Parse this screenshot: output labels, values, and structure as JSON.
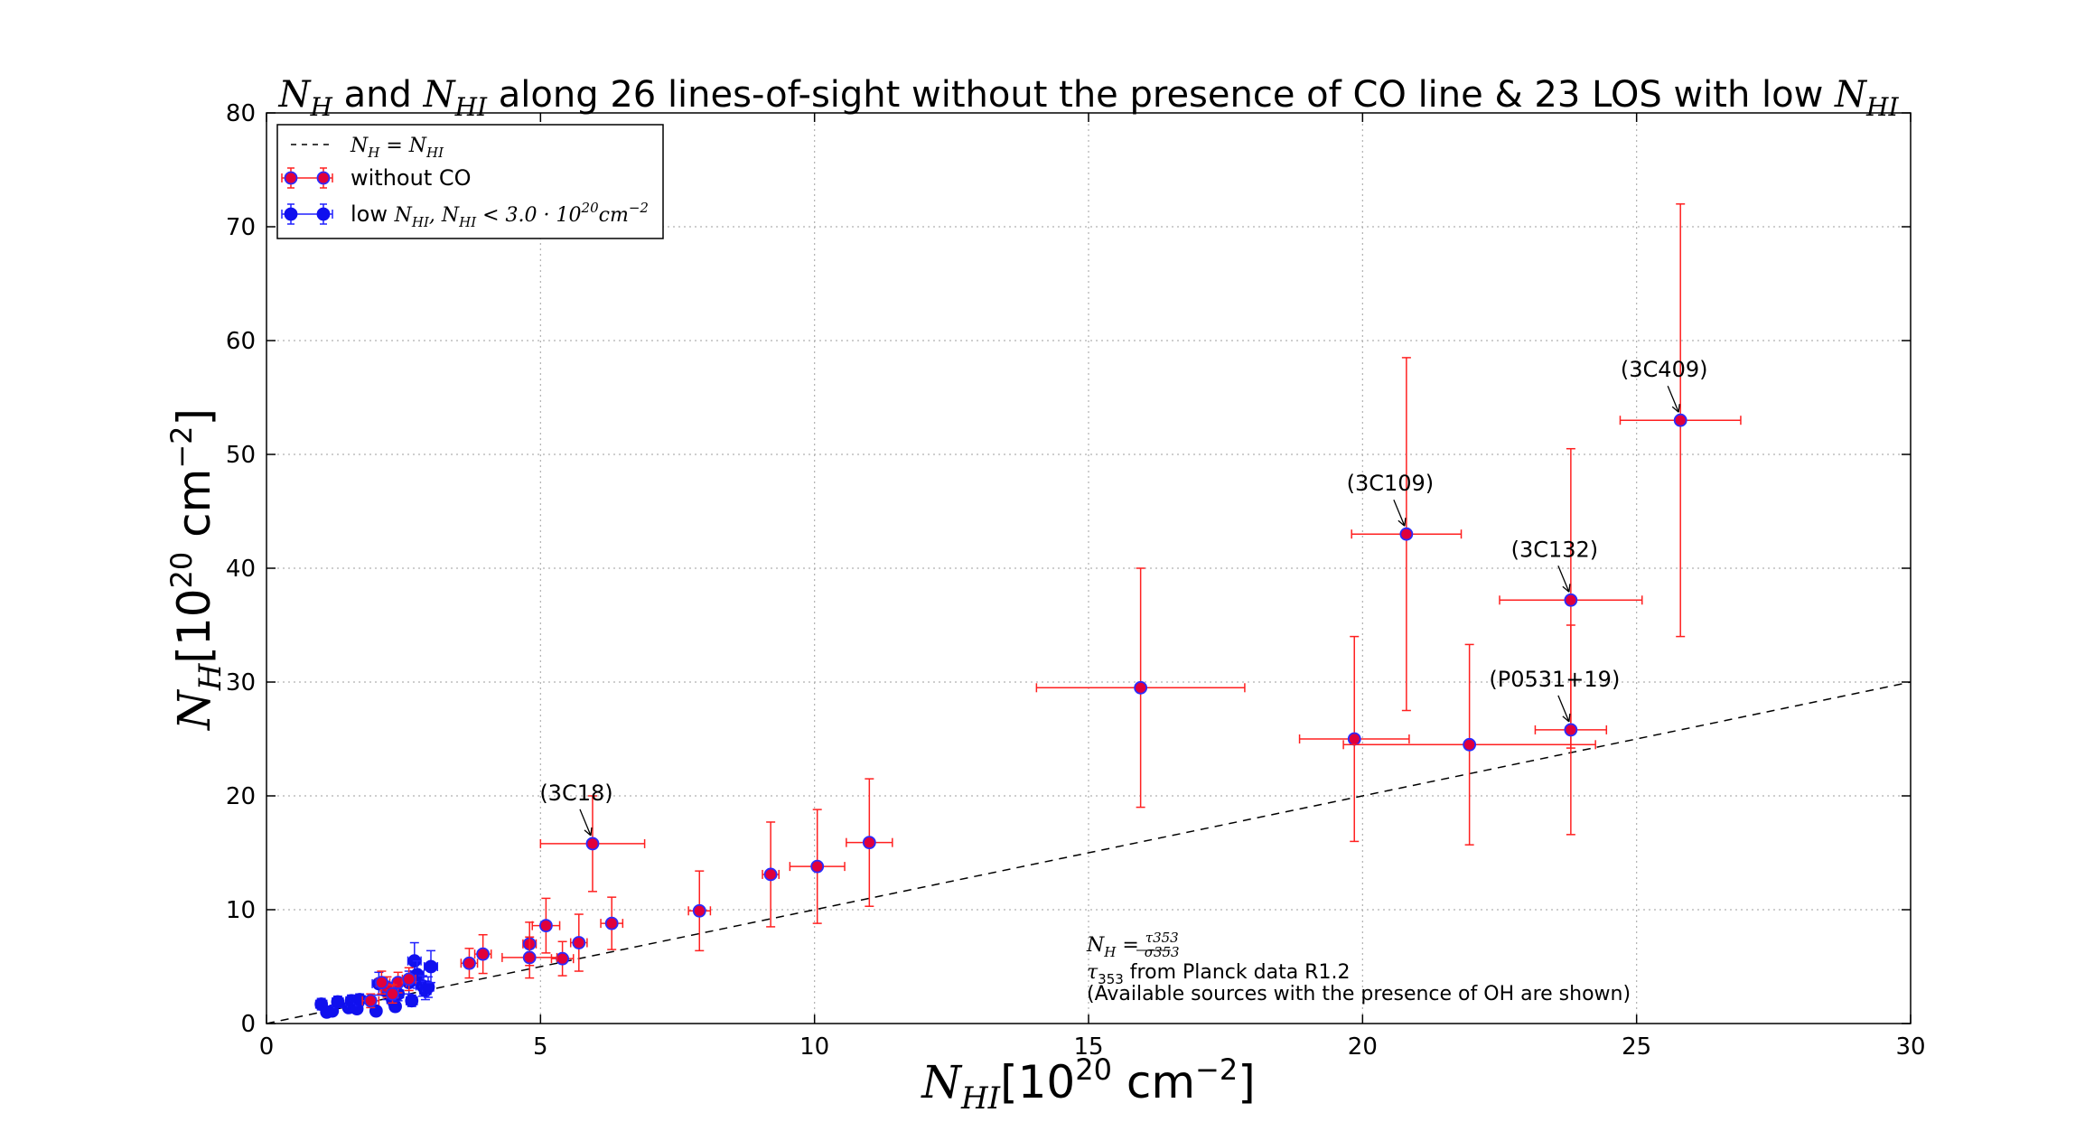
{
  "chart_data": {
    "type": "scatter",
    "title": "N_H and N_HI along 26 lines-of-sight without the presence of CO line & 23 LOS with low N_HI",
    "xlabel": "N_HI [10^20 cm^-2]",
    "ylabel": "N_H [10^20 cm^-2]",
    "xlim": [
      0,
      30
    ],
    "ylim": [
      0,
      80
    ],
    "x_ticks": [
      0,
      5,
      10,
      15,
      20,
      25,
      30
    ],
    "y_ticks": [
      0,
      10,
      20,
      30,
      40,
      50,
      60,
      70,
      80
    ],
    "grid": true,
    "legend_position": "top-left",
    "legend": {
      "line": "N_H = N_HI",
      "without_co": "without CO",
      "low_nhi": "low N_HI, N_HI < 3.0·10^20 cm^-2"
    },
    "reference_line": {
      "name": "N_H = N_HI",
      "style": "dashed",
      "color": "#000000",
      "x": [
        0,
        30
      ],
      "y": [
        0,
        30
      ]
    },
    "annotation_text": [
      "N_H = τ353 / σ353",
      "τ353 from Planck data R1.2",
      "(Available sources with the presence of OH are shown)"
    ],
    "series": [
      {
        "name": "without CO",
        "marker_color": "#e0003c",
        "marker_edge": "#2a2aff",
        "error_color": "#ff2020",
        "points": [
          {
            "x": 25.8,
            "y": 53.0,
            "xerr": 1.1,
            "yerr_low": 19.0,
            "yerr_high": 19.0,
            "label": "(3C409)"
          },
          {
            "x": 20.8,
            "y": 43.0,
            "xerr": 1.0,
            "yerr_low": 15.5,
            "yerr_high": 15.5,
            "label": "(3C109)"
          },
          {
            "x": 23.8,
            "y": 37.2,
            "xerr": 1.3,
            "yerr_low": 13.0,
            "yerr_high": 13.3,
            "label": "(3C132)"
          },
          {
            "x": 23.8,
            "y": 25.8,
            "xerr": 0.65,
            "yerr_low": 9.2,
            "yerr_high": 9.2,
            "label": "(P0531+19)"
          },
          {
            "x": 15.95,
            "y": 29.5,
            "xerr": 1.9,
            "yerr_low": 10.5,
            "yerr_high": 10.5
          },
          {
            "x": 19.85,
            "y": 25.0,
            "xerr": 1.0,
            "yerr_low": 9.0,
            "yerr_high": 9.0
          },
          {
            "x": 21.95,
            "y": 24.5,
            "xerr": 2.3,
            "yerr_low": 8.8,
            "yerr_high": 8.8
          },
          {
            "x": 11.0,
            "y": 15.9,
            "xerr": 0.42,
            "yerr_low": 5.6,
            "yerr_high": 5.6
          },
          {
            "x": 10.05,
            "y": 13.8,
            "xerr": 0.5,
            "yerr_low": 5.0,
            "yerr_high": 5.0
          },
          {
            "x": 9.2,
            "y": 13.1,
            "xerr": 0.15,
            "yerr_low": 4.6,
            "yerr_high": 4.6
          },
          {
            "x": 7.9,
            "y": 9.9,
            "xerr": 0.2,
            "yerr_low": 3.5,
            "yerr_high": 3.5
          },
          {
            "x": 5.95,
            "y": 15.8,
            "xerr": 0.95,
            "yerr_low": 4.2,
            "yerr_high": 4.2,
            "label": "(3C18)"
          },
          {
            "x": 6.3,
            "y": 8.8,
            "xerr": 0.2,
            "yerr_low": 2.3,
            "yerr_high": 2.3
          },
          {
            "x": 5.7,
            "y": 7.1,
            "xerr": 0.15,
            "yerr_low": 2.5,
            "yerr_high": 2.5
          },
          {
            "x": 5.4,
            "y": 5.7,
            "xerr": 0.2,
            "yerr_low": 1.5,
            "yerr_high": 1.5
          },
          {
            "x": 5.1,
            "y": 8.6,
            "xerr": 0.25,
            "yerr_low": 2.4,
            "yerr_high": 2.4
          },
          {
            "x": 4.8,
            "y": 7.0,
            "xerr": 0.12,
            "yerr_low": 1.9,
            "yerr_high": 1.9
          },
          {
            "x": 4.8,
            "y": 5.8,
            "xerr": 0.5,
            "yerr_low": 1.8,
            "yerr_high": 1.8
          },
          {
            "x": 3.95,
            "y": 6.1,
            "xerr": 0.15,
            "yerr_low": 1.7,
            "yerr_high": 1.7
          },
          {
            "x": 3.7,
            "y": 5.3,
            "xerr": 0.15,
            "yerr_low": 1.3,
            "yerr_high": 1.3
          },
          {
            "x": 2.4,
            "y": 3.6,
            "xerr": 0.15,
            "yerr_low": 0.9,
            "yerr_high": 0.9
          },
          {
            "x": 2.2,
            "y": 3.2,
            "xerr": 0.12,
            "yerr_low": 0.9,
            "yerr_high": 0.9
          },
          {
            "x": 1.9,
            "y": 2.0,
            "xerr": 0.15,
            "yerr_low": 0.6,
            "yerr_high": 0.6
          },
          {
            "x": 2.6,
            "y": 3.9,
            "xerr": 0.12,
            "yerr_low": 1.0,
            "yerr_high": 1.0
          },
          {
            "x": 2.1,
            "y": 3.6,
            "xerr": 0.1,
            "yerr_low": 1.0,
            "yerr_high": 1.0
          },
          {
            "x": 2.3,
            "y": 2.6,
            "xerr": 0.1,
            "yerr_low": 0.8,
            "yerr_high": 0.8
          }
        ]
      },
      {
        "name": "low N_HI, N_HI < 3.0·10^20 cm^-2",
        "marker_color": "#1010ee",
        "marker_edge": "#1010ee",
        "error_color": "#2020ff",
        "points": [
          {
            "x": 1.0,
            "y": 1.7,
            "xerr": 0.1,
            "yerr_low": 0.5,
            "yerr_high": 0.5
          },
          {
            "x": 1.1,
            "y": 1.0,
            "xerr": 0.08,
            "yerr_low": 0.3,
            "yerr_high": 0.3
          },
          {
            "x": 1.2,
            "y": 1.1,
            "xerr": 0.08,
            "yerr_low": 0.3,
            "yerr_high": 0.3
          },
          {
            "x": 1.3,
            "y": 1.9,
            "xerr": 0.1,
            "yerr_low": 0.5,
            "yerr_high": 0.5
          },
          {
            "x": 1.5,
            "y": 1.4,
            "xerr": 0.08,
            "yerr_low": 0.4,
            "yerr_high": 0.4
          },
          {
            "x": 1.55,
            "y": 2.0,
            "xerr": 0.1,
            "yerr_low": 0.5,
            "yerr_high": 0.5
          },
          {
            "x": 1.6,
            "y": 1.6,
            "xerr": 0.08,
            "yerr_low": 0.4,
            "yerr_high": 0.4
          },
          {
            "x": 1.65,
            "y": 1.3,
            "xerr": 0.08,
            "yerr_low": 0.3,
            "yerr_high": 0.3
          },
          {
            "x": 1.7,
            "y": 2.1,
            "xerr": 0.1,
            "yerr_low": 0.5,
            "yerr_high": 0.5
          },
          {
            "x": 2.0,
            "y": 1.1,
            "xerr": 0.08,
            "yerr_low": 0.3,
            "yerr_high": 0.3
          },
          {
            "x": 2.05,
            "y": 3.5,
            "xerr": 0.12,
            "yerr_low": 1.0,
            "yerr_high": 1.0
          },
          {
            "x": 2.2,
            "y": 2.8,
            "xerr": 0.1,
            "yerr_low": 0.7,
            "yerr_high": 0.7
          },
          {
            "x": 2.3,
            "y": 2.1,
            "xerr": 0.1,
            "yerr_low": 0.5,
            "yerr_high": 0.5
          },
          {
            "x": 2.35,
            "y": 1.5,
            "xerr": 0.08,
            "yerr_low": 0.4,
            "yerr_high": 0.4
          },
          {
            "x": 2.4,
            "y": 2.6,
            "xerr": 0.1,
            "yerr_low": 0.6,
            "yerr_high": 0.6
          },
          {
            "x": 2.6,
            "y": 3.6,
            "xerr": 0.12,
            "yerr_low": 1.0,
            "yerr_high": 1.0
          },
          {
            "x": 2.65,
            "y": 2.0,
            "xerr": 0.1,
            "yerr_low": 0.5,
            "yerr_high": 0.5
          },
          {
            "x": 2.7,
            "y": 5.5,
            "xerr": 0.12,
            "yerr_low": 1.6,
            "yerr_high": 1.6
          },
          {
            "x": 2.75,
            "y": 4.3,
            "xerr": 0.12,
            "yerr_low": 1.2,
            "yerr_high": 1.2
          },
          {
            "x": 2.85,
            "y": 3.3,
            "xerr": 0.12,
            "yerr_low": 0.9,
            "yerr_high": 0.9
          },
          {
            "x": 2.9,
            "y": 2.9,
            "xerr": 0.1,
            "yerr_low": 0.8,
            "yerr_high": 0.8
          },
          {
            "x": 2.95,
            "y": 3.2,
            "xerr": 0.1,
            "yerr_low": 0.9,
            "yerr_high": 0.9
          },
          {
            "x": 3.0,
            "y": 5.0,
            "xerr": 0.12,
            "yerr_low": 1.4,
            "yerr_high": 1.4
          }
        ]
      }
    ]
  }
}
